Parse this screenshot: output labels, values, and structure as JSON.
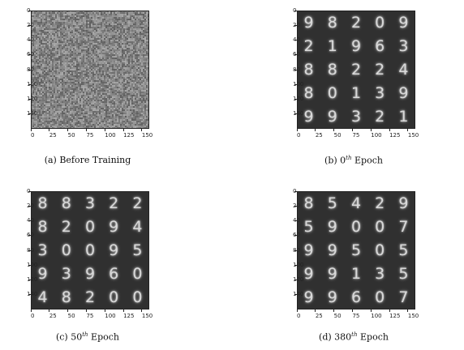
{
  "panels": [
    {
      "id": "a",
      "caption_prefix": "(a) Before Training",
      "caption_sup": "",
      "caption_suffix": "",
      "noise": true,
      "digits": []
    },
    {
      "id": "b",
      "caption_prefix": "(b) 0",
      "caption_sup": "th",
      "caption_suffix": " Epoch",
      "noise": false,
      "digits": [
        [
          "9",
          "8",
          "2",
          "0",
          "9"
        ],
        [
          "2",
          "1",
          "9",
          "6",
          "3"
        ],
        [
          "8",
          "8",
          "2",
          "2",
          "4"
        ],
        [
          "8",
          "0",
          "1",
          "3",
          "9"
        ],
        [
          "9",
          "9",
          "3",
          "2",
          "1"
        ]
      ]
    },
    {
      "id": "c",
      "caption_prefix": "(c) 50",
      "caption_sup": "th",
      "caption_suffix": " Epoch",
      "noise": false,
      "digits": [
        [
          "8",
          "8",
          "3",
          "2",
          "2"
        ],
        [
          "8",
          "2",
          "0",
          "9",
          "4"
        ],
        [
          "3",
          "0",
          "0",
          "9",
          "5"
        ],
        [
          "9",
          "3",
          "9",
          "6",
          "0"
        ],
        [
          "4",
          "8",
          "2",
          "0",
          "0"
        ]
      ]
    },
    {
      "id": "d",
      "caption_prefix": "(d) 380",
      "caption_sup": "th",
      "caption_suffix": " Epoch",
      "noise": false,
      "digits": [
        [
          "8",
          "5",
          "4",
          "2",
          "9"
        ],
        [
          "5",
          "9",
          "0",
          "0",
          "7"
        ],
        [
          "9",
          "9",
          "5",
          "0",
          "5"
        ],
        [
          "9",
          "9",
          "1",
          "3",
          "5"
        ],
        [
          "9",
          "9",
          "6",
          "0",
          "7"
        ]
      ]
    }
  ],
  "axes": {
    "x_ticks": [
      "0",
      "25",
      "50",
      "75",
      "100",
      "125",
      "150"
    ],
    "y_ticks": [
      "0",
      "20",
      "40",
      "60",
      "80",
      "100",
      "120",
      "140"
    ]
  }
}
